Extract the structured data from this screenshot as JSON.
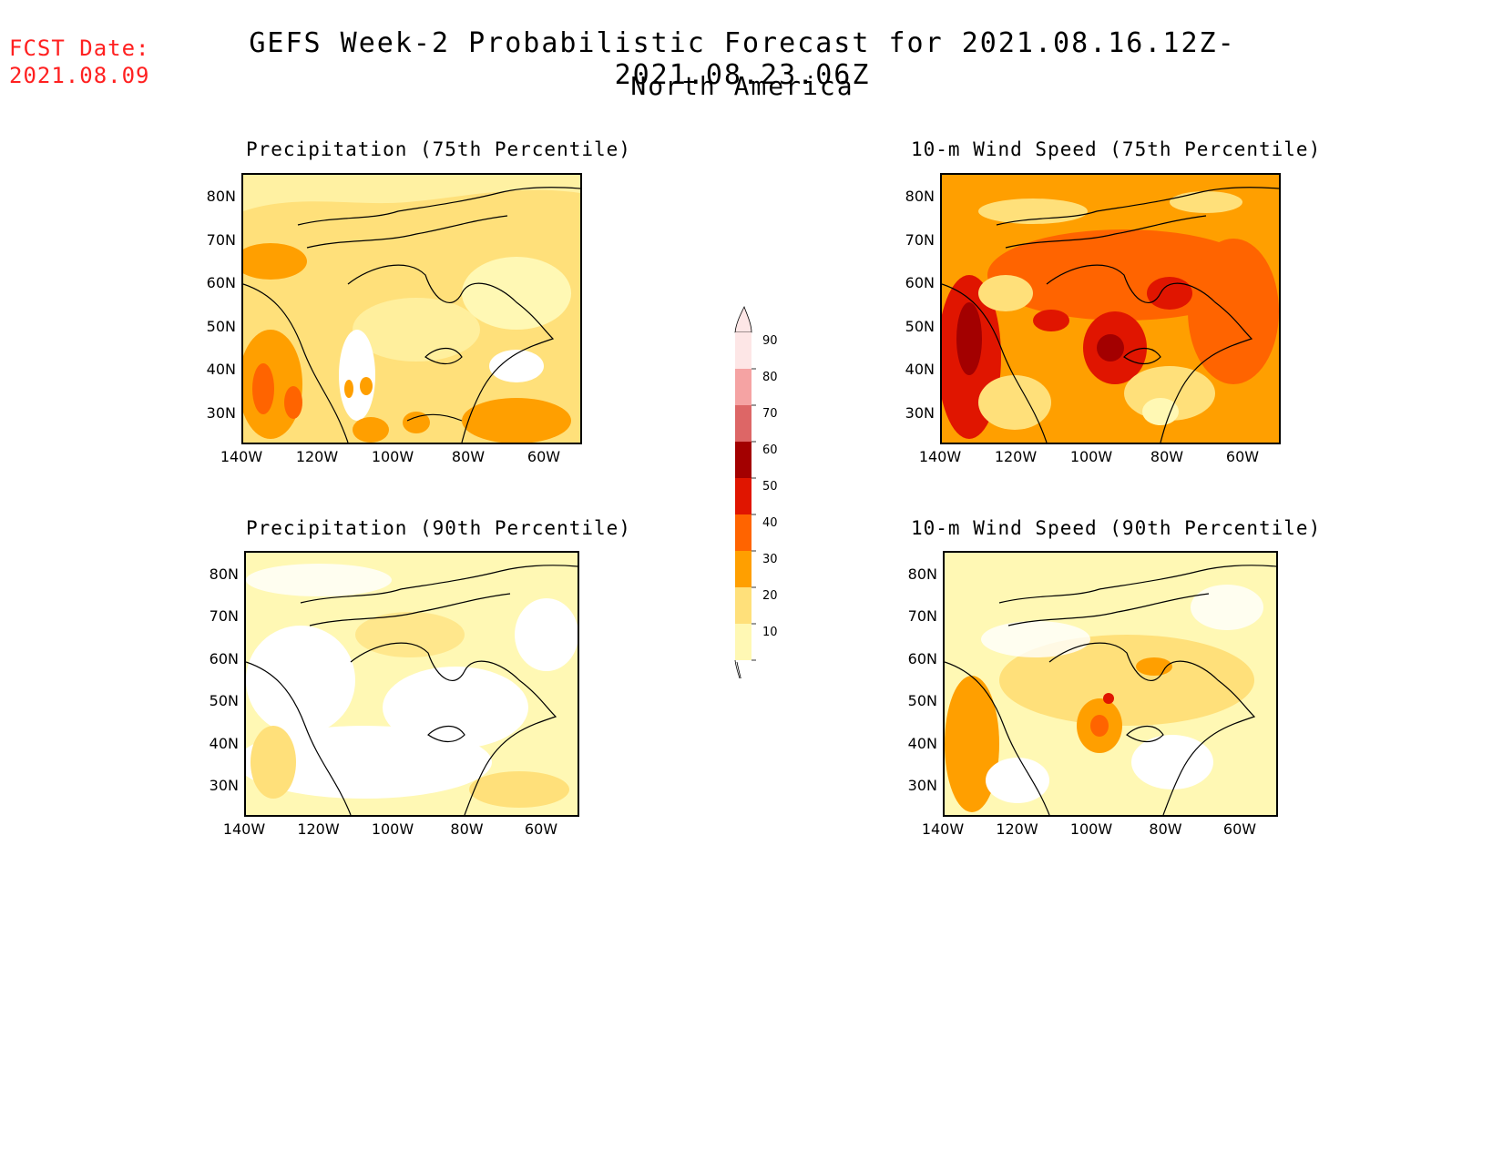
{
  "header": {
    "fcst_label": "FCST Date:",
    "fcst_date": "2021.08.09",
    "title": "GEFS Week-2 Probabilistic Forecast for 2021.08.16.12Z-2021.08.23.06Z",
    "subtitle": "North America"
  },
  "axes": {
    "lat_labels": [
      "80N",
      "70N",
      "60N",
      "50N",
      "40N",
      "30N"
    ],
    "lon_labels": [
      "140W",
      "120W",
      "100W",
      "80W",
      "60W"
    ]
  },
  "panels": [
    {
      "id": "precip75",
      "title": "Precipitation (75th Percentile)",
      "level": "moderate"
    },
    {
      "id": "precip90",
      "title": "Precipitation (90th Percentile)",
      "level": "low"
    },
    {
      "id": "wind75",
      "title": "10-m Wind Speed (75th Percentile)",
      "level": "high"
    },
    {
      "id": "wind90",
      "title": "10-m Wind Speed (90th Percentile)",
      "level": "moderate-low"
    }
  ],
  "colorbar": {
    "levels": [
      "90",
      "80",
      "70",
      "60",
      "50",
      "40",
      "30",
      "20",
      "10"
    ],
    "colors": [
      "#fde6e6",
      "#f5a3a3",
      "#dd6666",
      "#a30000",
      "#e01500",
      "#ff6400",
      "#ff9f00",
      "#ffe07a",
      "#fff8b4"
    ]
  }
}
